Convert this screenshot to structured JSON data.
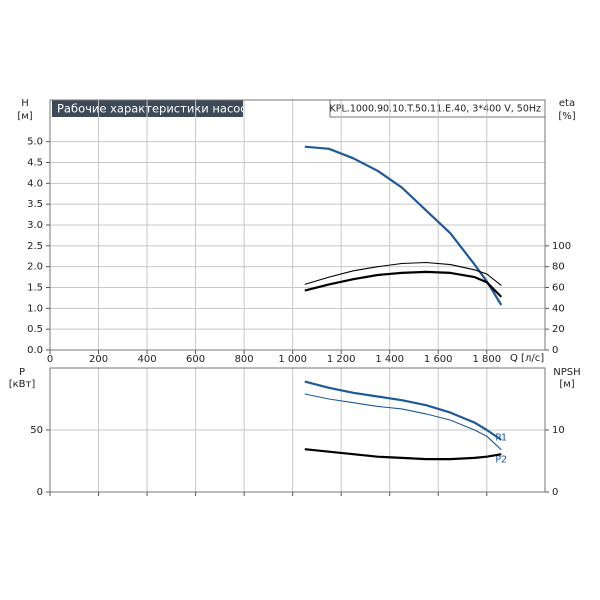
{
  "chart_data": [
    {
      "type": "line",
      "title": "Рабочие характеристики насоса",
      "subtitle": "KPL.1000.90.10.T.50.11.E.40, 3*400 V, 50Hz",
      "y_label": "H",
      "y_unit": "[м]",
      "y2_label": "eta",
      "y2_unit": "[%]",
      "x_label": "Q [л/с]",
      "grid": true,
      "xlim": [
        0,
        2040
      ],
      "xticks": [
        0,
        200,
        400,
        600,
        800,
        {
          "value": 1000,
          "label": "1 000"
        },
        {
          "value": 1200,
          "label": "1 200"
        },
        {
          "value": 1400,
          "label": "1 400"
        },
        {
          "value": 1600,
          "label": "1 600"
        },
        {
          "value": 1800,
          "label": "1 800"
        }
      ],
      "ylim": [
        0,
        6
      ],
      "yticks": [
        {
          "value": 0,
          "label": "0.0"
        },
        0.5,
        {
          "value": 1,
          "label": "1.0"
        },
        1.5,
        {
          "value": 2,
          "label": "2.0"
        },
        2.5,
        {
          "value": 3,
          "label": "3.0"
        },
        3.5,
        {
          "value": 4,
          "label": "4.0"
        },
        4.5,
        {
          "value": 5,
          "label": "5.0"
        }
      ],
      "y2lim": [
        0,
        240
      ],
      "y2ticks": [
        0,
        20,
        40,
        60,
        80,
        100
      ],
      "x": [
        1050,
        1150,
        1250,
        1350,
        1450,
        1550,
        1650,
        1750,
        1800,
        1860
      ],
      "series": [
        {
          "color": "#1f5a96",
          "style": "thick",
          "values": [
            4.88,
            4.83,
            4.6,
            4.3,
            3.9,
            3.35,
            2.8,
            2.05,
            1.65,
            1.08
          ]
        },
        {
          "color": "#000000",
          "style": "thick",
          "axis": "y2",
          "values": [
            57,
            63,
            68,
            72,
            74,
            75,
            74,
            70,
            65,
            51
          ]
        },
        {
          "color": "#000000",
          "style": "thin",
          "axis": "y2",
          "values": [
            63,
            70,
            76,
            80,
            83,
            84,
            82,
            77,
            73,
            62
          ]
        }
      ]
    },
    {
      "type": "line",
      "y_label": "P",
      "y_unit": "[кВт]",
      "y2_label": "NPSH",
      "y2_unit": "[м]",
      "grid": true,
      "xlim": [
        0,
        2040
      ],
      "xticks": [
        0,
        200,
        400,
        600,
        800,
        1000,
        1200,
        1400,
        1600,
        1800
      ],
      "ylim": [
        0,
        100
      ],
      "yticks": [
        0,
        50
      ],
      "y2lim": [
        0,
        20
      ],
      "y2ticks": [
        0,
        10
      ],
      "x": [
        1050,
        1150,
        1250,
        1350,
        1450,
        1550,
        1650,
        1750,
        1800,
        1860
      ],
      "series": [
        {
          "name": "P1",
          "color": "#1f5a96",
          "style": "thick",
          "values": [
            89,
            84,
            80,
            77,
            74,
            70,
            64,
            56,
            50,
            42
          ]
        },
        {
          "name": "P2",
          "color": "#1f5a96",
          "style": "thin",
          "values": [
            79,
            75,
            72,
            69,
            67,
            63,
            58,
            50,
            45,
            34
          ]
        },
        {
          "color": "#000000",
          "style": "thick",
          "axis": "y2",
          "values": [
            6.9,
            6.5,
            6.1,
            5.7,
            5.5,
            5.3,
            5.3,
            5.5,
            5.7,
            6.1
          ]
        }
      ]
    }
  ]
}
